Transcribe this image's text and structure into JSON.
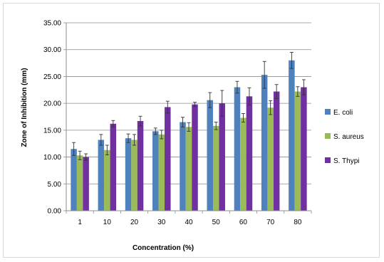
{
  "chart_data": {
    "type": "bar",
    "xlabel": "Concentration (%)",
    "ylabel": "Zone of Inhibition (mm)",
    "ylim": [
      0,
      35
    ],
    "yticks": [
      "0.00",
      "5.00",
      "10.00",
      "15.00",
      "20.00",
      "25.00",
      "30.00",
      "35.00"
    ],
    "grid": true,
    "legend_position": "right",
    "categories": [
      "1",
      "10",
      "20",
      "30",
      "40",
      "50",
      "60",
      "70",
      "80"
    ],
    "series": [
      {
        "name": "E. coli",
        "color": "#4f81bd",
        "values": [
          11.5,
          13.2,
          13.5,
          14.8,
          16.5,
          20.6,
          23.0,
          25.3,
          28.0
        ],
        "errors": [
          1.2,
          1.0,
          0.8,
          0.6,
          0.9,
          1.4,
          1.1,
          2.5,
          1.5
        ]
      },
      {
        "name": "S. aureus",
        "color": "#9bbb59",
        "values": [
          10.3,
          11.3,
          13.2,
          14.2,
          15.6,
          15.8,
          17.3,
          19.2,
          22.2
        ],
        "errors": [
          0.8,
          0.9,
          1.0,
          0.8,
          0.8,
          0.7,
          0.8,
          1.3,
          0.9
        ]
      },
      {
        "name": "S. Thypi",
        "color": "#7030a0",
        "values": [
          10.0,
          16.2,
          16.7,
          19.3,
          19.8,
          20.0,
          21.3,
          22.2,
          23.0
        ],
        "errors": [
          0.6,
          0.6,
          0.9,
          1.1,
          0.4,
          2.4,
          1.6,
          1.3,
          1.4
        ]
      }
    ]
  }
}
